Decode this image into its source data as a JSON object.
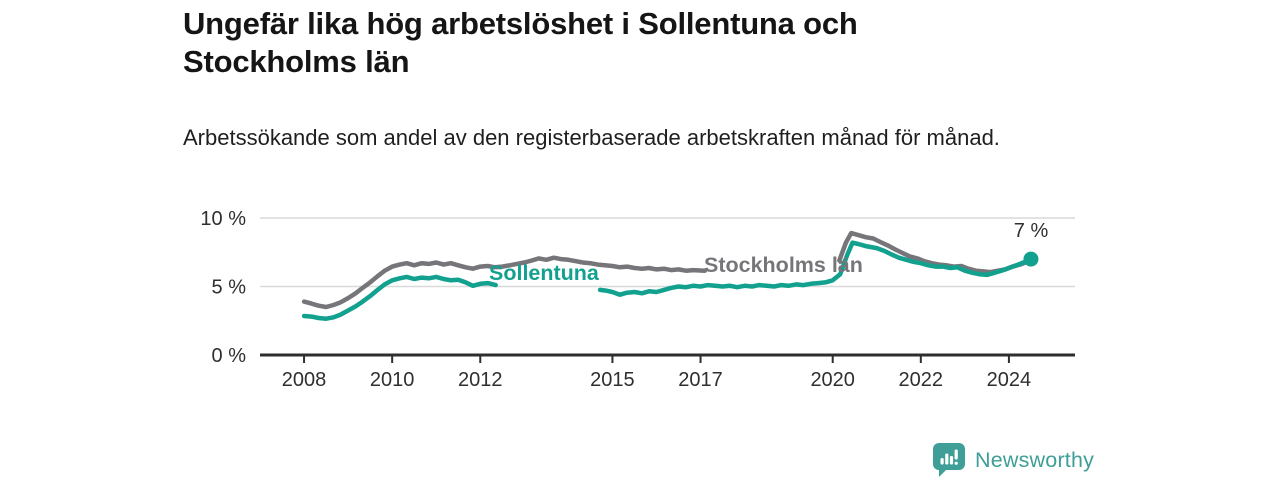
{
  "title": "Ungefär lika hög arbetslöshet i Sollentuna och Stockholms län",
  "subtitle": "Arbetssökande som andel av den registerbaserade arbetskraften månad för månad.",
  "footer": {
    "brand": "Newsworthy"
  },
  "colors": {
    "sollentuna": "#13a18f",
    "stockholms_lan": "#76767a",
    "grid": "#d9d9d9",
    "axis": "#2e2e2e",
    "logo": "#3f9e97",
    "annotation": "#2f2f2f"
  },
  "chart_data": {
    "type": "line",
    "unit": "%",
    "grid": "horizontal",
    "legend": "inline-labels",
    "x_range": [
      2007.0,
      2025.5
    ],
    "y_range": [
      0,
      10.5
    ],
    "yticks": [
      {
        "value": 0,
        "label": "0 %"
      },
      {
        "value": 5,
        "label": "5 %"
      },
      {
        "value": 10,
        "label": "10 %"
      }
    ],
    "xticks": [
      {
        "value": 2008,
        "label": "2008"
      },
      {
        "value": 2010,
        "label": "2010"
      },
      {
        "value": 2012,
        "label": "2012"
      },
      {
        "value": 2015,
        "label": "2015"
      },
      {
        "value": 2017,
        "label": "2017"
      },
      {
        "value": 2020,
        "label": "2020"
      },
      {
        "value": 2022,
        "label": "2022"
      },
      {
        "value": 2024,
        "label": "2024"
      }
    ],
    "end_annotation": {
      "label": "7 %",
      "series": "Sollentuna",
      "year": 2024.5,
      "value": 7.0
    },
    "series": [
      {
        "name": "Sollentuna",
        "color": "#13a18f",
        "segments": [
          [
            [
              2008.0,
              2.85
            ],
            [
              2008.17,
              2.8
            ],
            [
              2008.33,
              2.7
            ],
            [
              2008.5,
              2.65
            ],
            [
              2008.67,
              2.75
            ],
            [
              2008.83,
              2.95
            ],
            [
              2009.0,
              3.25
            ],
            [
              2009.17,
              3.55
            ],
            [
              2009.33,
              3.9
            ],
            [
              2009.5,
              4.3
            ],
            [
              2009.67,
              4.75
            ],
            [
              2009.83,
              5.15
            ],
            [
              2010.0,
              5.45
            ],
            [
              2010.17,
              5.6
            ],
            [
              2010.33,
              5.7
            ],
            [
              2010.5,
              5.55
            ],
            [
              2010.67,
              5.65
            ],
            [
              2010.83,
              5.6
            ],
            [
              2011.0,
              5.7
            ],
            [
              2011.17,
              5.55
            ],
            [
              2011.33,
              5.45
            ],
            [
              2011.5,
              5.5
            ],
            [
              2011.67,
              5.3
            ],
            [
              2011.83,
              5.05
            ],
            [
              2012.0,
              5.2
            ],
            [
              2012.17,
              5.25
            ],
            [
              2012.35,
              5.1
            ]
          ],
          [
            [
              2014.72,
              4.75
            ],
            [
              2014.85,
              4.7
            ],
            [
              2015.0,
              4.6
            ],
            [
              2015.17,
              4.4
            ],
            [
              2015.33,
              4.55
            ],
            [
              2015.5,
              4.6
            ],
            [
              2015.67,
              4.5
            ],
            [
              2015.83,
              4.65
            ],
            [
              2016.0,
              4.6
            ],
            [
              2016.17,
              4.75
            ],
            [
              2016.33,
              4.9
            ],
            [
              2016.5,
              5.0
            ],
            [
              2016.67,
              4.95
            ],
            [
              2016.83,
              5.05
            ],
            [
              2017.0,
              5.0
            ],
            [
              2017.17,
              5.1
            ],
            [
              2017.33,
              5.05
            ],
            [
              2017.5,
              5.0
            ],
            [
              2017.67,
              5.05
            ],
            [
              2017.83,
              4.95
            ],
            [
              2018.0,
              5.05
            ],
            [
              2018.17,
              5.0
            ],
            [
              2018.33,
              5.1
            ],
            [
              2018.5,
              5.05
            ],
            [
              2018.67,
              5.0
            ],
            [
              2018.83,
              5.1
            ],
            [
              2019.0,
              5.05
            ],
            [
              2019.17,
              5.15
            ],
            [
              2019.33,
              5.1
            ],
            [
              2019.5,
              5.2
            ],
            [
              2019.67,
              5.25
            ],
            [
              2019.83,
              5.3
            ],
            [
              2020.0,
              5.45
            ],
            [
              2020.17,
              5.9
            ],
            [
              2020.33,
              7.3
            ],
            [
              2020.45,
              8.2
            ],
            [
              2020.58,
              8.1
            ],
            [
              2020.75,
              7.95
            ],
            [
              2021.0,
              7.8
            ],
            [
              2021.17,
              7.6
            ],
            [
              2021.33,
              7.35
            ],
            [
              2021.5,
              7.1
            ],
            [
              2021.67,
              6.95
            ],
            [
              2021.83,
              6.8
            ],
            [
              2022.0,
              6.7
            ],
            [
              2022.17,
              6.55
            ],
            [
              2022.33,
              6.45
            ],
            [
              2022.5,
              6.45
            ],
            [
              2022.67,
              6.35
            ],
            [
              2022.83,
              6.4
            ],
            [
              2023.0,
              6.15
            ],
            [
              2023.17,
              6.0
            ],
            [
              2023.33,
              5.9
            ],
            [
              2023.5,
              5.85
            ],
            [
              2023.67,
              6.0
            ],
            [
              2023.83,
              6.15
            ],
            [
              2024.0,
              6.35
            ],
            [
              2024.17,
              6.55
            ],
            [
              2024.33,
              6.75
            ],
            [
              2024.5,
              7.0
            ]
          ]
        ]
      },
      {
        "name": "Stockholms län",
        "color": "#76767a",
        "segments": [
          [
            [
              2008.0,
              3.9
            ],
            [
              2008.17,
              3.75
            ],
            [
              2008.33,
              3.6
            ],
            [
              2008.5,
              3.5
            ],
            [
              2008.67,
              3.65
            ],
            [
              2008.83,
              3.85
            ],
            [
              2009.0,
              4.15
            ],
            [
              2009.17,
              4.5
            ],
            [
              2009.33,
              4.9
            ],
            [
              2009.5,
              5.3
            ],
            [
              2009.67,
              5.75
            ],
            [
              2009.83,
              6.15
            ],
            [
              2010.0,
              6.45
            ],
            [
              2010.17,
              6.6
            ],
            [
              2010.33,
              6.7
            ],
            [
              2010.5,
              6.55
            ],
            [
              2010.67,
              6.7
            ],
            [
              2010.83,
              6.65
            ],
            [
              2011.0,
              6.75
            ],
            [
              2011.17,
              6.6
            ],
            [
              2011.33,
              6.7
            ],
            [
              2011.5,
              6.55
            ],
            [
              2011.67,
              6.4
            ],
            [
              2011.83,
              6.3
            ],
            [
              2012.0,
              6.45
            ],
            [
              2012.17,
              6.5
            ],
            [
              2012.33,
              6.4
            ],
            [
              2012.5,
              6.45
            ],
            [
              2012.67,
              6.55
            ],
            [
              2012.83,
              6.65
            ],
            [
              2013.0,
              6.75
            ],
            [
              2013.17,
              6.9
            ],
            [
              2013.33,
              7.05
            ],
            [
              2013.5,
              6.95
            ],
            [
              2013.67,
              7.1
            ],
            [
              2013.83,
              7.0
            ],
            [
              2014.0,
              6.95
            ],
            [
              2014.17,
              6.85
            ],
            [
              2014.33,
              6.75
            ],
            [
              2014.5,
              6.7
            ],
            [
              2014.67,
              6.6
            ],
            [
              2014.83,
              6.55
            ],
            [
              2015.0,
              6.5
            ],
            [
              2015.17,
              6.4
            ],
            [
              2015.33,
              6.45
            ],
            [
              2015.5,
              6.35
            ],
            [
              2015.67,
              6.3
            ],
            [
              2015.83,
              6.35
            ],
            [
              2016.0,
              6.25
            ],
            [
              2016.17,
              6.3
            ],
            [
              2016.33,
              6.2
            ],
            [
              2016.5,
              6.25
            ],
            [
              2016.67,
              6.15
            ],
            [
              2016.83,
              6.2
            ],
            [
              2017.1,
              6.15
            ]
          ],
          [
            [
              2020.15,
              6.9
            ],
            [
              2020.3,
              8.2
            ],
            [
              2020.42,
              8.9
            ],
            [
              2020.58,
              8.75
            ],
            [
              2020.75,
              8.6
            ],
            [
              2020.92,
              8.5
            ],
            [
              2021.08,
              8.25
            ],
            [
              2021.25,
              8.0
            ],
            [
              2021.42,
              7.7
            ],
            [
              2021.58,
              7.45
            ],
            [
              2021.75,
              7.2
            ],
            [
              2021.92,
              7.05
            ],
            [
              2022.08,
              6.85
            ],
            [
              2022.25,
              6.7
            ],
            [
              2022.42,
              6.6
            ],
            [
              2022.58,
              6.55
            ],
            [
              2022.75,
              6.45
            ],
            [
              2022.92,
              6.5
            ],
            [
              2023.08,
              6.3
            ],
            [
              2023.25,
              6.15
            ],
            [
              2023.42,
              6.1
            ],
            [
              2023.58,
              6.05
            ],
            [
              2023.75,
              6.15
            ],
            [
              2023.92,
              6.25
            ],
            [
              2024.08,
              6.45
            ],
            [
              2024.25,
              6.6
            ],
            [
              2024.42,
              6.8
            ],
            [
              2024.5,
              6.9
            ]
          ]
        ]
      }
    ]
  }
}
